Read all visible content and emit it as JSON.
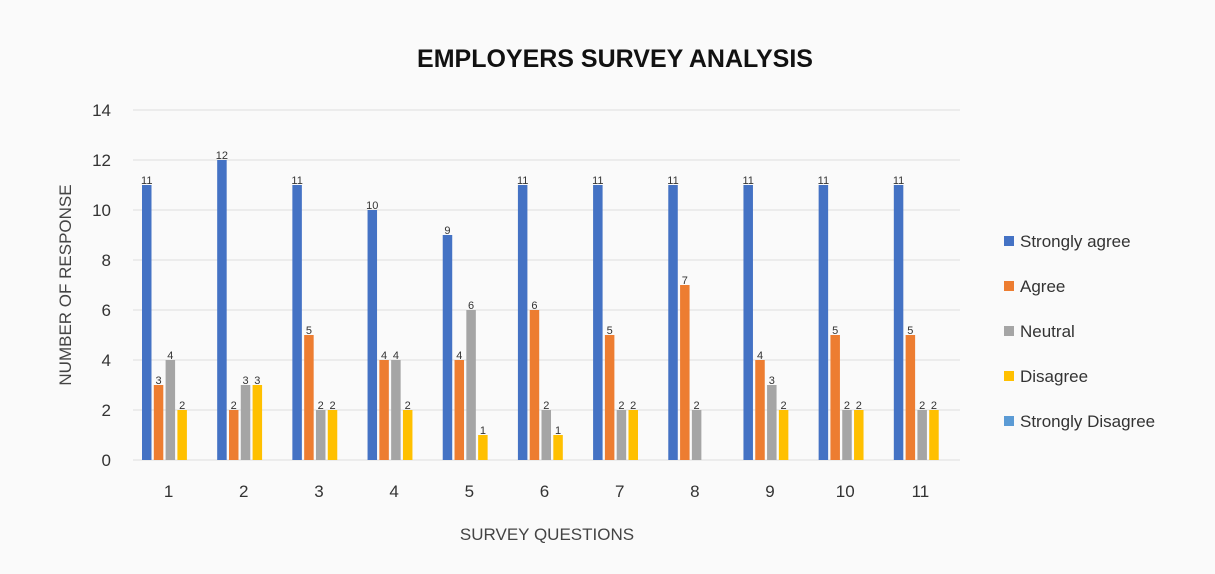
{
  "chart_data": {
    "type": "bar",
    "title": "EMPLOYERS SURVEY ANALYSIS",
    "xlabel": "SURVEY QUESTIONS",
    "ylabel": "NUMBER OF RESPONSE",
    "ylim": [
      0,
      14
    ],
    "yticks": [
      "0",
      "2",
      "4",
      "6",
      "8",
      "10",
      "12",
      "14"
    ],
    "grid": true,
    "legend_position": "right",
    "categories": [
      "1",
      "2",
      "3",
      "4",
      "5",
      "6",
      "7",
      "8",
      "9",
      "10",
      "11"
    ],
    "series": [
      {
        "name": "Strongly agree",
        "color": "#4472c4",
        "values": [
          11,
          12,
          11,
          10,
          9,
          11,
          11,
          11,
          11,
          11,
          11
        ]
      },
      {
        "name": "Agree",
        "color": "#ed7d31",
        "values": [
          3,
          2,
          5,
          4,
          4,
          6,
          5,
          7,
          4,
          5,
          5
        ]
      },
      {
        "name": "Neutral",
        "color": "#a5a5a5",
        "values": [
          4,
          3,
          2,
          4,
          6,
          2,
          2,
          2,
          3,
          2,
          2
        ]
      },
      {
        "name": "Disagree",
        "color": "#ffc000",
        "values": [
          2,
          3,
          2,
          2,
          1,
          1,
          2,
          0,
          2,
          2,
          2
        ]
      },
      {
        "name": "Strongly Disagree",
        "color": "#5b9bd5",
        "values": [
          0,
          0,
          0,
          0,
          0,
          0,
          0,
          0,
          0,
          0,
          0
        ]
      }
    ]
  }
}
